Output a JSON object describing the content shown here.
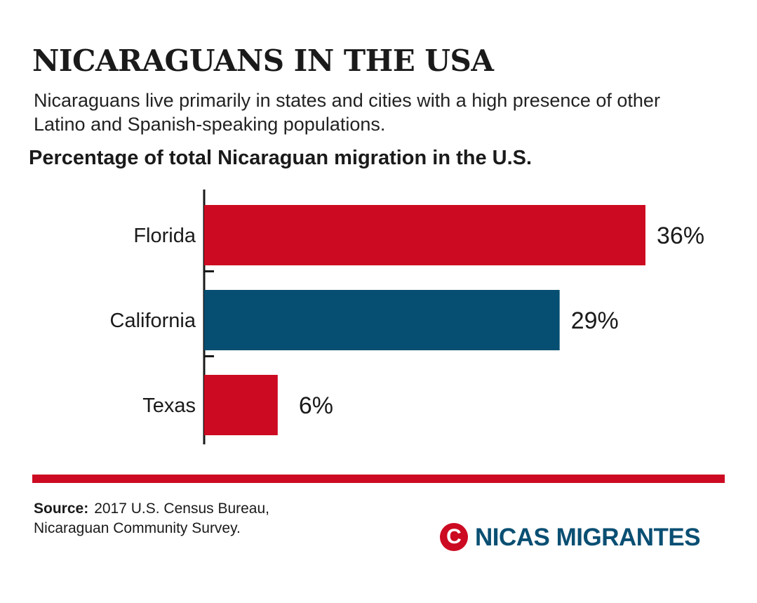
{
  "header": {
    "title": "NICARAGUANS IN THE USA",
    "subtitle": "Nicaraguans live primarily in states and cities with a high presence of other Latino and Spanish-speaking populations."
  },
  "chart_data": {
    "type": "bar",
    "orientation": "horizontal",
    "title": "Percentage of total Nicaraguan migration in the U.S.",
    "categories": [
      "Florida",
      "California",
      "Texas"
    ],
    "values": [
      36,
      29,
      6
    ],
    "value_labels": [
      "36%",
      "29%",
      "6%"
    ],
    "bar_colors": [
      "#cc0a21",
      "#064f73",
      "#cc0a21"
    ],
    "xlim": [
      0,
      36
    ],
    "grid": false,
    "legend": "none"
  },
  "footer": {
    "source_label": "Source:",
    "source_line1": "2017 U.S. Census Bureau,",
    "source_line2": "Nicaraguan Community Survey.",
    "logo_mark": "C",
    "logo_text": "NICAS MIGRANTES",
    "rule_color": "#cc0a21",
    "logo_color": "#0a4f73"
  }
}
